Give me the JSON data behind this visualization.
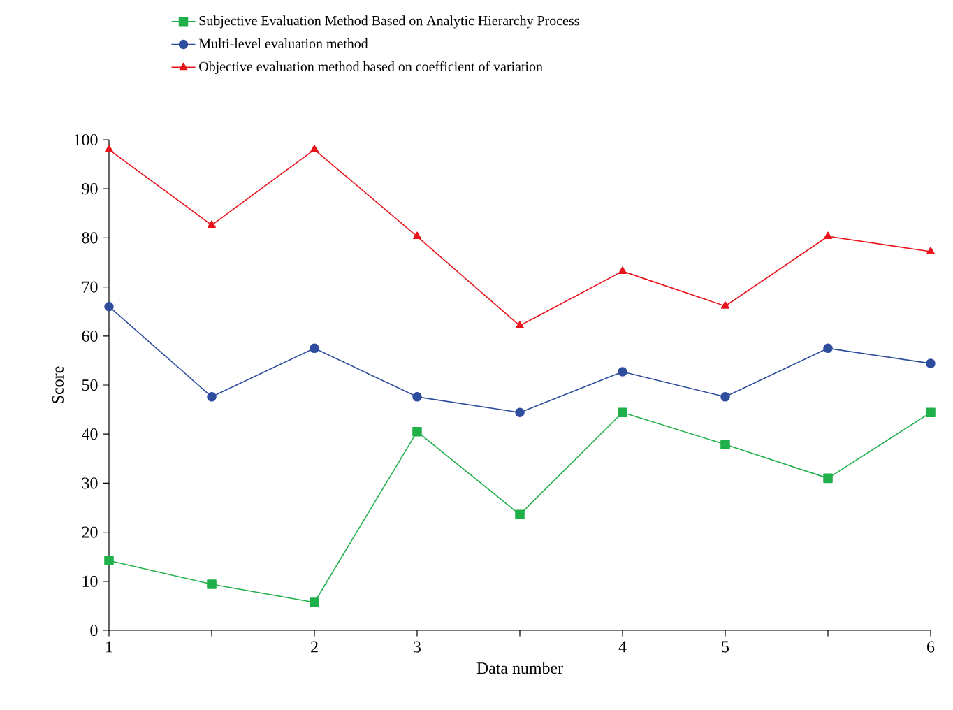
{
  "chart_data": {
    "type": "line",
    "xlabel": "Data number",
    "ylabel": "Score",
    "categories": [
      "1",
      null,
      "2",
      "3",
      null,
      "4",
      "5",
      null,
      "6"
    ],
    "ylim": [
      0,
      100
    ],
    "yticks": [
      0,
      10,
      20,
      30,
      40,
      50,
      60,
      70,
      80,
      90,
      100
    ],
    "grid": false,
    "legend": "top",
    "line_style": "solid",
    "series": [
      {
        "name": "Subjective Evaluation Method Based on Analytic Hierarchy Process",
        "color": "#1fb04a",
        "marker": "square",
        "values": [
          14.2,
          9.4,
          5.7,
          40.5,
          23.6,
          44.4,
          37.9,
          31,
          44.4
        ]
      },
      {
        "name": "Multi-level evaluation method",
        "color": "#2e4d9e",
        "marker": "circle",
        "values": [
          66,
          47.6,
          57.5,
          47.6,
          44.4,
          52.7,
          47.6,
          57.5,
          54.4
        ]
      },
      {
        "name": "Objective evaluation method based on coefficient of variation",
        "color": "#e8141c",
        "marker": "triangle",
        "values": [
          98,
          82.6,
          98,
          80.3,
          62.1,
          73.2,
          66.1,
          80.3,
          77.2
        ]
      }
    ]
  }
}
